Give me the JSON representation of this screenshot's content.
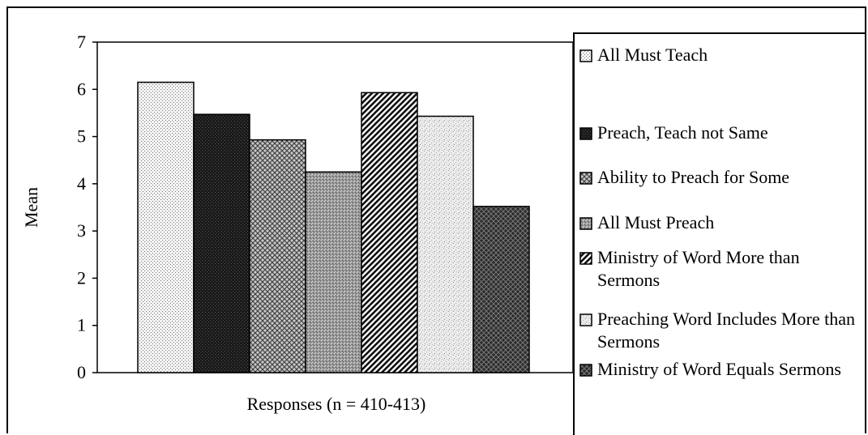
{
  "chart_data": {
    "type": "bar",
    "title": "",
    "xlabel": "Responses (n = 410-413)",
    "ylabel": "Mean",
    "ylim": [
      0,
      7
    ],
    "yticks": [
      0,
      1,
      2,
      3,
      4,
      5,
      6,
      7
    ],
    "grid": false,
    "legend_position": "right",
    "series": [
      {
        "name": "All Must Teach",
        "value": 6.15,
        "pattern": "dots-light"
      },
      {
        "name": "Preach, Teach not Same",
        "value": 5.47,
        "pattern": "dark-solid"
      },
      {
        "name": "Ability to Preach for Some",
        "value": 4.93,
        "pattern": "crosshatch"
      },
      {
        "name": "All Must Preach",
        "value": 4.25,
        "pattern": "gray-stipple"
      },
      {
        "name": "Ministry of Word More than Sermons",
        "value": 5.93,
        "pattern": "diagonal"
      },
      {
        "name": "Preaching Word Includes More than Sermons",
        "value": 5.43,
        "pattern": "light-speckle"
      },
      {
        "name": "Ministry of Word Equals Sermons",
        "value": 3.52,
        "pattern": "dark-check"
      }
    ]
  }
}
